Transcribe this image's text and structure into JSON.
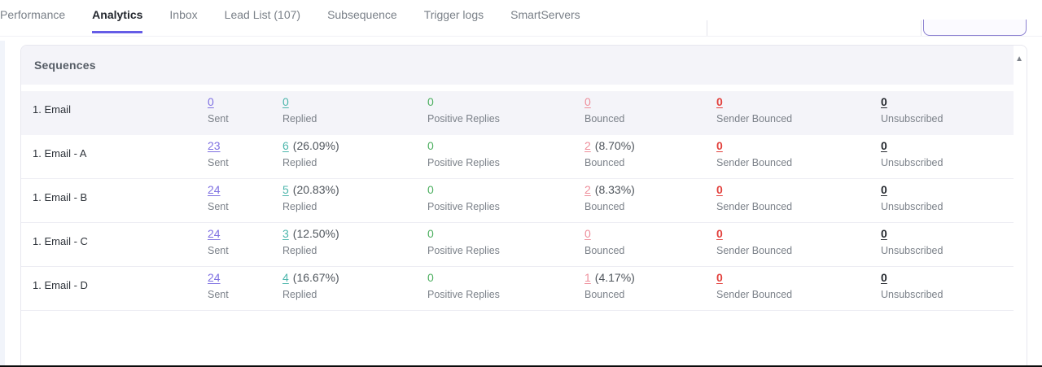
{
  "nav": {
    "tabs": [
      {
        "label": "Performance",
        "active": false
      },
      {
        "label": "Analytics",
        "active": true
      },
      {
        "label": "Inbox",
        "active": false
      },
      {
        "label": "Lead List (107)",
        "active": false
      },
      {
        "label": "Subsequence",
        "active": false
      },
      {
        "label": "Trigger logs",
        "active": false
      },
      {
        "label": "SmartServers",
        "active": false
      }
    ]
  },
  "toolbar": {
    "search_value": "",
    "button_label": ""
  },
  "panel": {
    "title": "Sequences",
    "collapse_icon": "▲"
  },
  "table": {
    "columns": [
      "Sent",
      "Replied",
      "Positive Replies",
      "Bounced",
      "Sender Bounced",
      "Unsubscribed"
    ],
    "rows": [
      {
        "label": "1. Email",
        "highlight": true,
        "stats": {
          "sent": "0",
          "replied": "0",
          "replied_pct": "",
          "positive": "0",
          "bounced": "0",
          "bounced_pct": "",
          "sender_bounced": "0",
          "unsubscribed": "0"
        }
      },
      {
        "label": "1. Email - A",
        "highlight": false,
        "stats": {
          "sent": "23",
          "replied": "6",
          "replied_pct": "(26.09%)",
          "positive": "0",
          "bounced": "2",
          "bounced_pct": "(8.70%)",
          "sender_bounced": "0",
          "unsubscribed": "0"
        }
      },
      {
        "label": "1. Email - B",
        "highlight": false,
        "stats": {
          "sent": "24",
          "replied": "5",
          "replied_pct": "(20.83%)",
          "positive": "0",
          "bounced": "2",
          "bounced_pct": "(8.33%)",
          "sender_bounced": "0",
          "unsubscribed": "0"
        }
      },
      {
        "label": "1. Email - C",
        "highlight": false,
        "stats": {
          "sent": "24",
          "replied": "3",
          "replied_pct": "(12.50%)",
          "positive": "0",
          "bounced": "0",
          "bounced_pct": "",
          "sender_bounced": "0",
          "unsubscribed": "0"
        }
      },
      {
        "label": "1. Email - D",
        "highlight": false,
        "stats": {
          "sent": "24",
          "replied": "4",
          "replied_pct": "(16.67%)",
          "positive": "0",
          "bounced": "1",
          "bounced_pct": "(4.17%)",
          "sender_bounced": "0",
          "unsubscribed": "0"
        }
      }
    ]
  },
  "colors": {
    "accent_purple": "#655ce6",
    "link_purple": "#7f71e2",
    "teal": "#4db6ac",
    "green": "#4caf5f",
    "pink": "#ee8e9b",
    "red": "#e2403c"
  }
}
